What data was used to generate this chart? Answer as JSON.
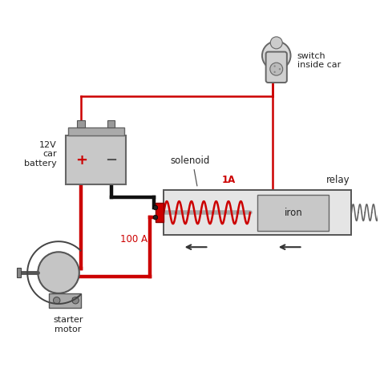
{
  "wire_red": "#cc0000",
  "wire_black": "#111111",
  "relay_border": "#555555",
  "text_color": "#222222",
  "labels": {
    "battery": "12V\ncar\nbattery",
    "solenoid": "solenoid",
    "relay": "relay",
    "iron": "iron",
    "switch": "switch\ninside car",
    "starter": "starter\nmotor",
    "current_100A": "100 A",
    "current_1A": "1A"
  },
  "figsize": [
    4.74,
    4.74
  ],
  "dpi": 100
}
